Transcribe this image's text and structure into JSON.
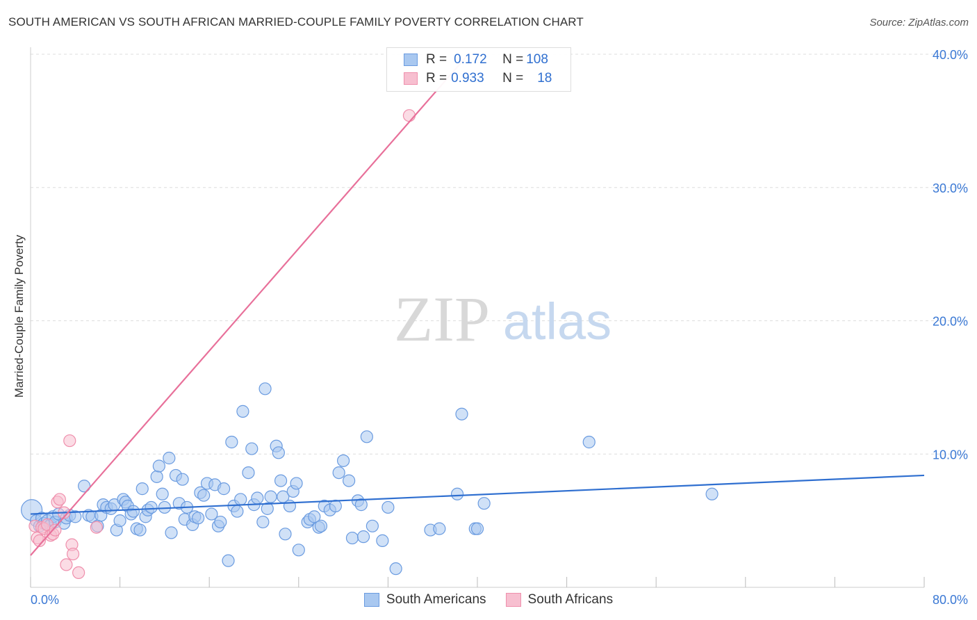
{
  "header": {
    "title": "SOUTH AMERICAN VS SOUTH AFRICAN MARRIED-COUPLE FAMILY POVERTY CORRELATION CHART",
    "source": "Source: ZipAtlas.com"
  },
  "watermark": {
    "zip": "ZIP",
    "atlas": "atlas"
  },
  "legend_top": {
    "rows": [
      {
        "r_label": "R = ",
        "r_value": "0.172",
        "n_label": "N = ",
        "n_value": "108"
      },
      {
        "r_label": "R = ",
        "r_value": "0.933",
        "n_label": "N = ",
        "n_value": "18"
      }
    ]
  },
  "legend_bottom": {
    "items": [
      "South Americans",
      "South Africans"
    ]
  },
  "colors": {
    "blue_fill": "#a9c8f0",
    "blue_stroke": "#6a9be0",
    "blue_line": "#2f6fd0",
    "pink_fill": "#f7bfd0",
    "pink_stroke": "#ef8fac",
    "pink_line": "#e8709a",
    "tick_label": "#3a78d4",
    "grid": "#dddddd"
  },
  "chart_data": {
    "type": "scatter",
    "title": "SOUTH AMERICAN VS SOUTH AFRICAN MARRIED-COUPLE FAMILY POVERTY CORRELATION CHART",
    "xlabel": "",
    "ylabel": "Married-Couple Family Poverty",
    "xlim": [
      0,
      80
    ],
    "ylim": [
      0,
      40
    ],
    "x_tick_labels": [
      "0.0%",
      "80.0%"
    ],
    "y_ticks": [
      10,
      20,
      30,
      40
    ],
    "y_tick_labels": [
      "10.0%",
      "20.0%",
      "30.0%",
      "40.0%"
    ],
    "grid": true,
    "legend_position": "top-center",
    "series": [
      {
        "name": "South Americans",
        "r": 0.172,
        "n": 108,
        "trend": {
          "x": [
            0,
            80
          ],
          "y": [
            5.5,
            8.4
          ]
        },
        "points": [
          [
            0.1,
            5.8
          ],
          [
            0.5,
            5.0
          ],
          [
            0.8,
            4.6
          ],
          [
            1.0,
            5.2
          ],
          [
            1.2,
            4.8
          ],
          [
            1.5,
            5.0
          ],
          [
            1.8,
            4.7
          ],
          [
            2.0,
            5.3
          ],
          [
            2.2,
            4.9
          ],
          [
            2.5,
            5.5
          ],
          [
            3.0,
            4.8
          ],
          [
            3.2,
            5.2
          ],
          [
            3.5,
            5.4
          ],
          [
            4.0,
            5.3
          ],
          [
            4.8,
            7.6
          ],
          [
            5.2,
            5.4
          ],
          [
            5.5,
            5.3
          ],
          [
            6.0,
            4.6
          ],
          [
            6.3,
            5.4
          ],
          [
            6.5,
            6.2
          ],
          [
            6.8,
            6.0
          ],
          [
            7.2,
            5.9
          ],
          [
            7.5,
            6.2
          ],
          [
            7.7,
            4.3
          ],
          [
            8.0,
            5.0
          ],
          [
            8.3,
            6.6
          ],
          [
            8.5,
            6.4
          ],
          [
            8.7,
            6.1
          ],
          [
            9.0,
            5.5
          ],
          [
            9.2,
            5.7
          ],
          [
            9.5,
            4.4
          ],
          [
            9.8,
            4.3
          ],
          [
            10.0,
            7.4
          ],
          [
            10.3,
            5.3
          ],
          [
            10.5,
            5.8
          ],
          [
            10.8,
            6.0
          ],
          [
            11.3,
            8.3
          ],
          [
            11.5,
            9.1
          ],
          [
            11.8,
            7.0
          ],
          [
            12.0,
            6.0
          ],
          [
            12.4,
            9.7
          ],
          [
            12.6,
            4.1
          ],
          [
            13.0,
            8.4
          ],
          [
            13.3,
            6.3
          ],
          [
            13.6,
            8.1
          ],
          [
            13.8,
            5.1
          ],
          [
            14.0,
            6.0
          ],
          [
            14.5,
            4.7
          ],
          [
            14.7,
            5.3
          ],
          [
            15.0,
            5.2
          ],
          [
            15.2,
            7.1
          ],
          [
            15.5,
            6.9
          ],
          [
            15.8,
            7.8
          ],
          [
            16.2,
            5.5
          ],
          [
            16.5,
            7.7
          ],
          [
            16.8,
            4.6
          ],
          [
            17.0,
            4.9
          ],
          [
            17.3,
            7.4
          ],
          [
            17.7,
            2.0
          ],
          [
            18.0,
            10.9
          ],
          [
            18.2,
            6.1
          ],
          [
            18.5,
            5.7
          ],
          [
            18.8,
            6.6
          ],
          [
            19.0,
            13.2
          ],
          [
            19.5,
            8.6
          ],
          [
            19.8,
            10.4
          ],
          [
            20.0,
            6.2
          ],
          [
            20.3,
            6.7
          ],
          [
            20.8,
            4.9
          ],
          [
            21.0,
            14.9
          ],
          [
            21.2,
            5.9
          ],
          [
            21.5,
            6.8
          ],
          [
            22.0,
            10.6
          ],
          [
            22.2,
            10.1
          ],
          [
            22.4,
            8.0
          ],
          [
            22.6,
            6.8
          ],
          [
            22.8,
            4.0
          ],
          [
            23.2,
            6.1
          ],
          [
            23.5,
            7.2
          ],
          [
            23.8,
            7.8
          ],
          [
            24.0,
            2.8
          ],
          [
            24.8,
            4.9
          ],
          [
            25.0,
            5.1
          ],
          [
            25.4,
            5.3
          ],
          [
            25.8,
            4.5
          ],
          [
            26.0,
            4.6
          ],
          [
            26.3,
            6.1
          ],
          [
            26.8,
            5.8
          ],
          [
            27.3,
            6.1
          ],
          [
            27.6,
            8.6
          ],
          [
            28.0,
            9.5
          ],
          [
            28.5,
            8.0
          ],
          [
            28.8,
            3.7
          ],
          [
            29.3,
            6.5
          ],
          [
            29.6,
            6.2
          ],
          [
            29.8,
            3.8
          ],
          [
            30.1,
            11.3
          ],
          [
            30.6,
            4.6
          ],
          [
            31.5,
            3.5
          ],
          [
            32.0,
            6.0
          ],
          [
            32.7,
            1.4
          ],
          [
            35.8,
            4.3
          ],
          [
            36.6,
            4.4
          ],
          [
            38.2,
            7.0
          ],
          [
            38.6,
            13.0
          ],
          [
            39.8,
            4.4
          ],
          [
            40.0,
            4.4
          ],
          [
            40.6,
            6.3
          ],
          [
            50.0,
            10.9
          ],
          [
            61.0,
            7.0
          ]
        ]
      },
      {
        "name": "South Africans",
        "r": 0.933,
        "n": 18,
        "trend": {
          "x": [
            0,
            39.2
          ],
          "y": [
            2.4,
            40
          ]
        },
        "points": [
          [
            0.4,
            4.6
          ],
          [
            0.6,
            3.7
          ],
          [
            0.8,
            3.5
          ],
          [
            1.0,
            4.5
          ],
          [
            1.2,
            4.4
          ],
          [
            1.5,
            4.7
          ],
          [
            1.8,
            3.9
          ],
          [
            2.0,
            4.0
          ],
          [
            2.2,
            4.3
          ],
          [
            2.4,
            6.4
          ],
          [
            2.6,
            6.6
          ],
          [
            3.0,
            5.6
          ],
          [
            3.2,
            1.7
          ],
          [
            3.5,
            11.0
          ],
          [
            3.7,
            3.2
          ],
          [
            3.8,
            2.5
          ],
          [
            4.3,
            1.1
          ],
          [
            5.9,
            4.5
          ],
          [
            33.9,
            35.4
          ]
        ]
      }
    ]
  }
}
